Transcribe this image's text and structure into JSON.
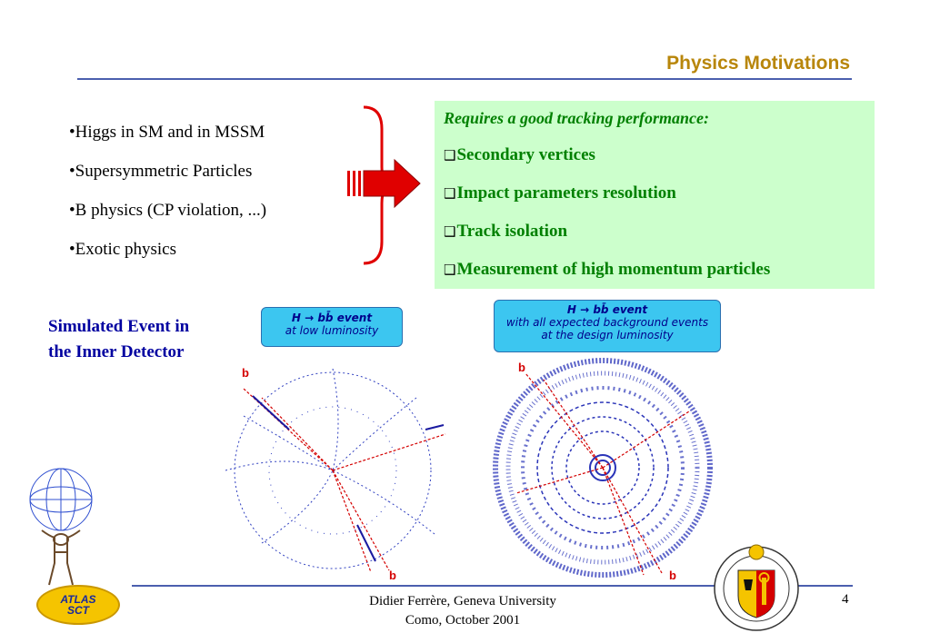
{
  "title": "Physics Motivations",
  "bullets": [
    "•Higgs in SM and in MSSM",
    "•Supersymmetric Particles",
    "•B physics (CP violation, ...)",
    "•Exotic physics"
  ],
  "requirements": {
    "heading": "Requires a good tracking performance:",
    "checkbox_glyph": "❑",
    "items": [
      "Secondary vertices",
      "Impact parameters resolution",
      "Track isolation",
      "Measurement of high momentum particles"
    ]
  },
  "simulated_label": [
    "Simulated Event in",
    "the Inner Detector"
  ],
  "event_left": {
    "line1": "H → bb̄ event",
    "line2": "at low luminosity",
    "b_labels": [
      "b",
      "b"
    ]
  },
  "event_right": {
    "line1": "H → bb̄ event",
    "line2": "with all expected background events",
    "line3": "at the design luminosity",
    "b_labels": [
      "b",
      "b"
    ]
  },
  "footer": {
    "line1": "Didier Ferrère, Geneva University",
    "line2": "Como, October 2001"
  },
  "page_number": "4",
  "atlas_badge": [
    "ATLAS",
    "SCT"
  ],
  "colors": {
    "title": "#b8860b",
    "rule": "#4b5fae",
    "req_box_bg": "#ccffcc",
    "req_text": "#008000",
    "sim_label": "#0000a0",
    "event_box": "#3cc6f0",
    "arrow": "#e00000"
  }
}
